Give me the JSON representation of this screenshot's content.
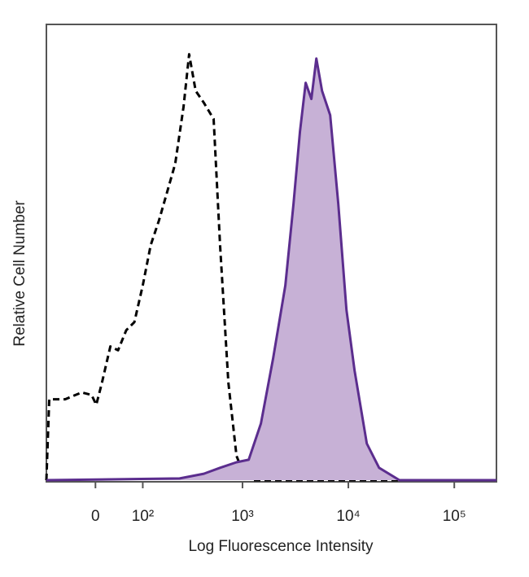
{
  "chart_data": {
    "type": "histogram-overlay",
    "xlabel": "Log Fluorescence Intensity",
    "ylabel": "Relative Cell Number",
    "xscale": "biexponential",
    "xlim": [
      -105,
      250000
    ],
    "ylim": [
      0,
      107
    ],
    "xticks": [
      0,
      {
        "value": 100,
        "label": "10²"
      },
      {
        "value": 1000,
        "label": "10³"
      },
      {
        "value": 10000,
        "label": "10⁴"
      },
      {
        "value": 100000,
        "label": "10⁵"
      }
    ],
    "series": [
      {
        "color": "#000000",
        "dashed": true,
        "filled": false,
        "x": [
          -105,
          -97,
          -58,
          -25,
          -7,
          1.5,
          11.7,
          27,
          42,
          59,
          78,
          100,
          124,
          153,
          186,
          225,
          272,
          309,
          357,
          429,
          532,
          613,
          734,
          877,
          1046,
          1250,
          213000
        ],
        "values": [
          0,
          19,
          19,
          20.6,
          20,
          17.7,
          22.9,
          31.4,
          30.5,
          35.2,
          37.1,
          45.7,
          55.2,
          61,
          67.6,
          74.3,
          87.6,
          100,
          91.4,
          88.6,
          84.8,
          55.2,
          22.9,
          5.7,
          1,
          0,
          0
        ]
      },
      {
        "color": "#5b2d8e",
        "dashed": false,
        "filled": true,
        "fill": "#c7b1d6",
        "x": [
          -105,
          249,
          429,
          613,
          877,
          1145,
          1495,
          1947,
          2541,
          3035,
          3496,
          3958,
          4478,
          4983,
          5644,
          6735,
          8040,
          9597,
          11460,
          14940,
          19490,
          30350,
          250000
        ],
        "values": [
          0,
          0.4,
          1.5,
          2.9,
          4.2,
          4.8,
          13.3,
          28.6,
          45.7,
          64.8,
          81.9,
          93.3,
          89.5,
          99,
          91.4,
          85.7,
          64.8,
          40,
          25.7,
          8.6,
          2.9,
          0,
          0
        ]
      }
    ]
  }
}
